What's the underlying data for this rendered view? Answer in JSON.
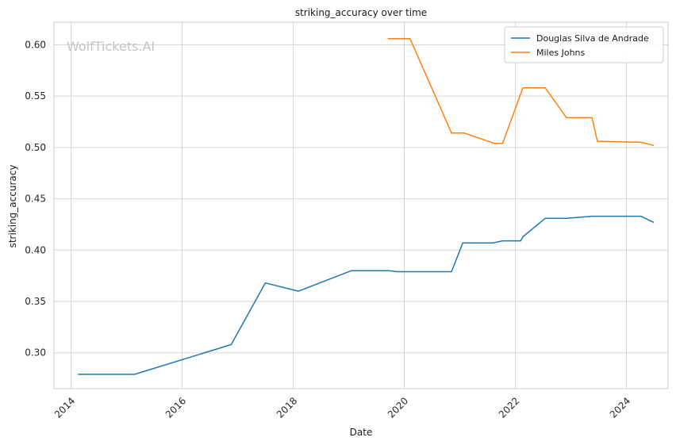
{
  "watermark": "WolfTickets.AI",
  "chart_data": {
    "type": "line",
    "title": "striking_accuracy over time",
    "xlabel": "Date",
    "ylabel": "striking_accuracy",
    "xlim": [
      "2013-09-10",
      "2024-10-01"
    ],
    "ylim": [
      0.265,
      0.622
    ],
    "x_ticks": [
      "2014",
      "2016",
      "2018",
      "2020",
      "2022",
      "2024"
    ],
    "y_ticks": [
      "0.30",
      "0.35",
      "0.40",
      "0.45",
      "0.50",
      "0.55",
      "0.60"
    ],
    "grid": true,
    "legend_position": "top-right",
    "series": [
      {
        "name": "Douglas Silva de Andrade",
        "color": "#1f77b4",
        "points": [
          {
            "x": "2014-02-15",
            "y": 0.279
          },
          {
            "x": "2015-02-22",
            "y": 0.279
          },
          {
            "x": "2016-11-19",
            "y": 0.308
          },
          {
            "x": "2017-07-01",
            "y": 0.368
          },
          {
            "x": "2018-02-03",
            "y": 0.36
          },
          {
            "x": "2019-01-19",
            "y": 0.38
          },
          {
            "x": "2019-09-21",
            "y": 0.38
          },
          {
            "x": "2019-11-16",
            "y": 0.379
          },
          {
            "x": "2020-11-07",
            "y": 0.379
          },
          {
            "x": "2021-01-20",
            "y": 0.407
          },
          {
            "x": "2021-08-07",
            "y": 0.407
          },
          {
            "x": "2021-10-09",
            "y": 0.409
          },
          {
            "x": "2022-02-05",
            "y": 0.409
          },
          {
            "x": "2022-02-19",
            "y": 0.413
          },
          {
            "x": "2022-07-16",
            "y": 0.431
          },
          {
            "x": "2022-12-03",
            "y": 0.431
          },
          {
            "x": "2023-05-20",
            "y": 0.433
          },
          {
            "x": "2024-04-06",
            "y": 0.433
          },
          {
            "x": "2024-06-29",
            "y": 0.427
          }
        ]
      },
      {
        "name": "Miles Johns",
        "color": "#ff7f0e",
        "points": [
          {
            "x": "2019-09-14",
            "y": 0.606
          },
          {
            "x": "2020-02-08",
            "y": 0.606
          },
          {
            "x": "2020-11-07",
            "y": 0.514
          },
          {
            "x": "2021-01-30",
            "y": 0.514
          },
          {
            "x": "2021-08-14",
            "y": 0.504
          },
          {
            "x": "2021-10-09",
            "y": 0.504
          },
          {
            "x": "2022-02-19",
            "y": 0.558
          },
          {
            "x": "2022-07-16",
            "y": 0.558
          },
          {
            "x": "2022-12-03",
            "y": 0.529
          },
          {
            "x": "2023-05-20",
            "y": 0.529
          },
          {
            "x": "2023-06-24",
            "y": 0.506
          },
          {
            "x": "2024-04-06",
            "y": 0.505
          },
          {
            "x": "2024-06-29",
            "y": 0.502
          }
        ]
      }
    ]
  }
}
